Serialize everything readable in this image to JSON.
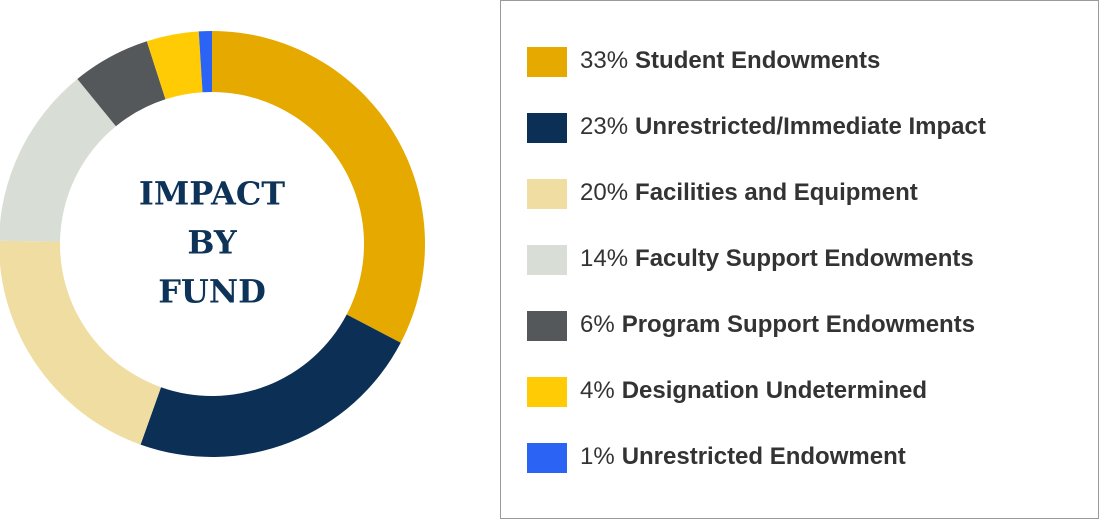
{
  "chart_data": {
    "type": "pie",
    "center_label": [
      "IMPACT",
      "BY",
      "FUND"
    ],
    "categories": [
      "Student Endowments",
      "Unrestricted/Immediate Impact",
      "Facilities and Equipment",
      "Faculty Support Endowments",
      "Program Support Endowments",
      "Designation Undetermined",
      "Unrestricted Endowment"
    ],
    "values": [
      33,
      23,
      20,
      14,
      6,
      4,
      1
    ],
    "value_labels": [
      "33%",
      "23%",
      "20%",
      "14%",
      "6%",
      "4%",
      "1%"
    ],
    "colors": [
      "#e6a900",
      "#0b2f55",
      "#f0dda2",
      "#d8ddd5",
      "#54585b",
      "#ffcb05",
      "#2b63f5"
    ],
    "legend": "right"
  }
}
